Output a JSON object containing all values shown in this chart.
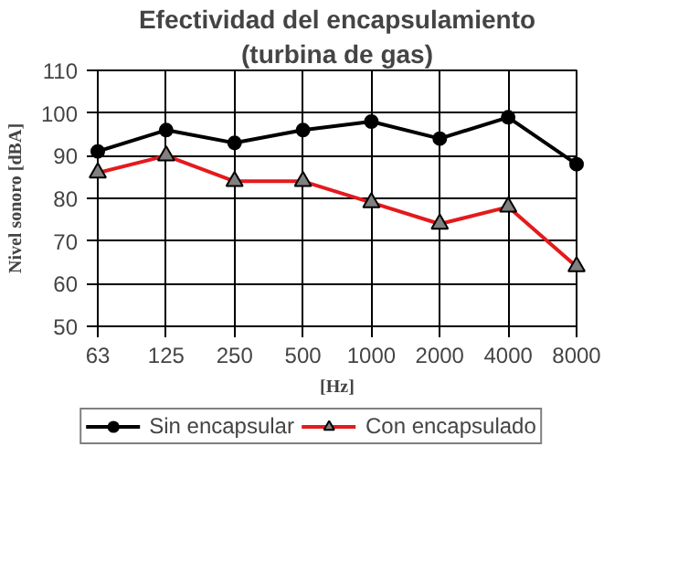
{
  "chart_data": {
    "type": "line",
    "title": "Efectividad del encapsulamiento",
    "subtitle": "(turbina de gas)",
    "xlabel": "[Hz]",
    "ylabel": "Nivel sonoro [dBA]",
    "categories": [
      "63",
      "125",
      "250",
      "500",
      "1000",
      "2000",
      "4000",
      "8000"
    ],
    "series": [
      {
        "name": "Sin encapsular",
        "color": "#000000",
        "marker": "circle",
        "values": [
          91,
          96,
          93,
          96,
          98,
          94,
          99,
          88
        ]
      },
      {
        "name": "Con encapsulado",
        "color": "#e41a1c",
        "marker": "triangle",
        "values": [
          86,
          90,
          84,
          84,
          79,
          74,
          78,
          64
        ]
      }
    ],
    "ylim": [
      50,
      110
    ],
    "yticks": [
      50,
      60,
      70,
      80,
      90,
      100,
      110
    ],
    "grid": true,
    "legend": "bottom"
  }
}
